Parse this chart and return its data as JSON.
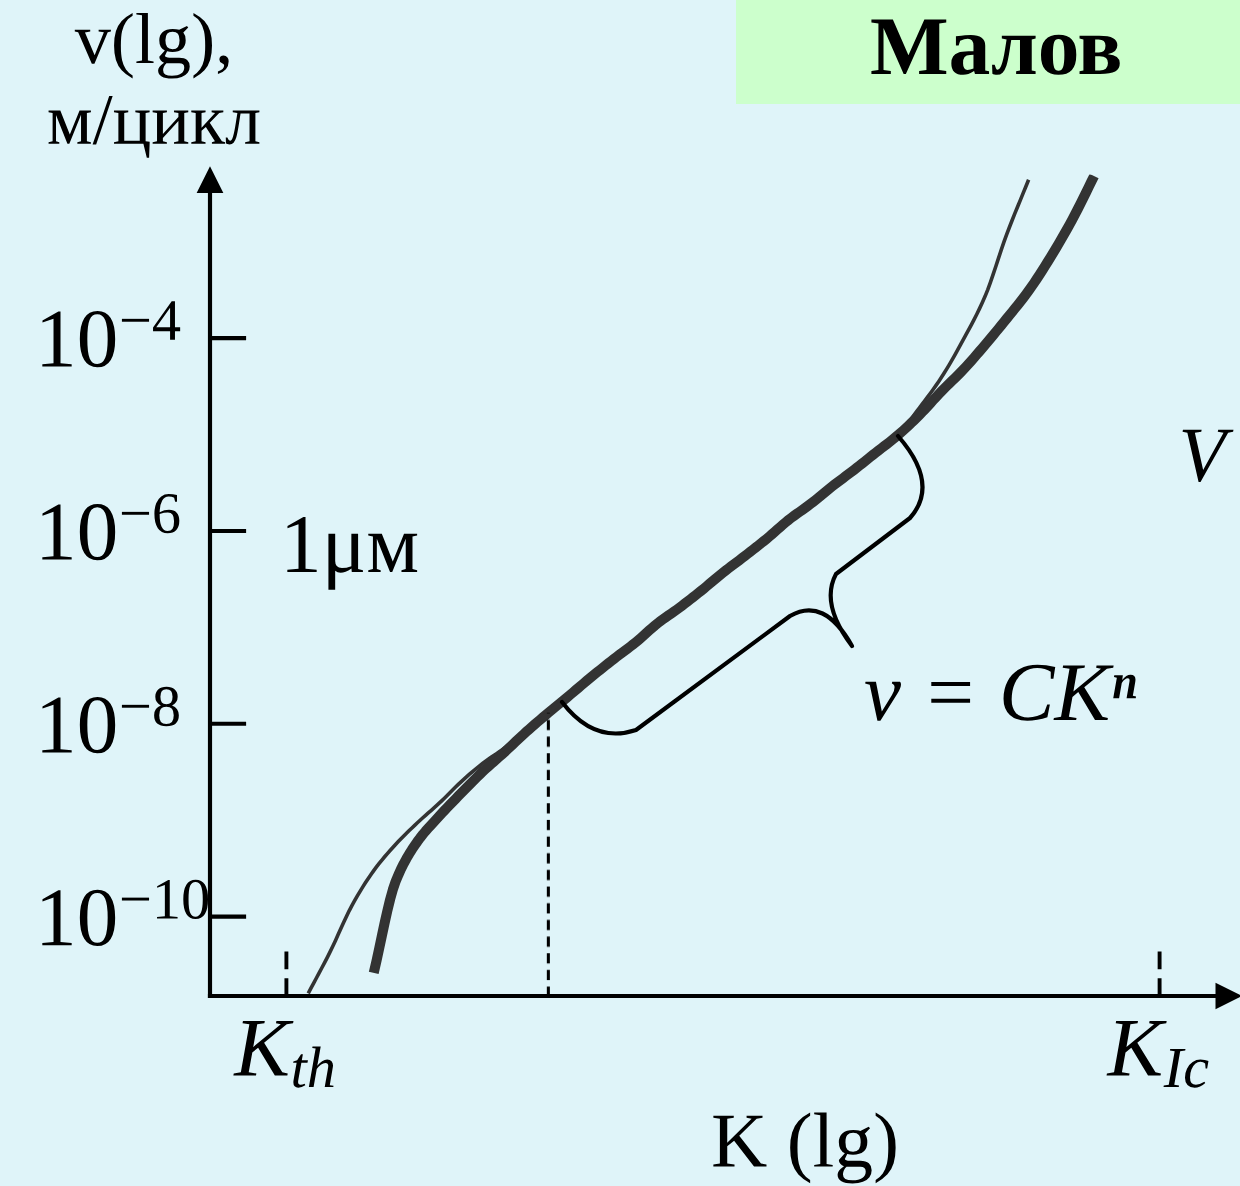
{
  "chart_data": {
    "type": "line",
    "title": "Малов",
    "xlabel": "K (lg)",
    "ylabel": "v(lg),\nм/цикл",
    "annotations": [
      "1μм",
      "v = CKⁿ",
      "V"
    ],
    "log": "y",
    "ylim": [
      1.5e-11,
      0.005
    ],
    "categories": [
      null,
      null,
      null,
      "K$_{th}$",
      null,
      null,
      null,
      null,
      null,
      null,
      null,
      null,
      null,
      null,
      null,
      null,
      null,
      null,
      null,
      null,
      null,
      null,
      null,
      null,
      null,
      null,
      null,
      null,
      null,
      null,
      null,
      null,
      null,
      null,
      null,
      null,
      null,
      null,
      null,
      null,
      null,
      null,
      null,
      "K$_{Ic}$",
      null,
      null,
      null
    ],
    "yticks": [
      {
        "value": 1e-10,
        "label": "10$^{−10}$"
      },
      {
        "value": 1e-08,
        "label": "10$^{−8}$"
      },
      {
        "value": 1e-06,
        "label": "10$^{−6}$"
      },
      {
        "value": 0.0001,
        "label": "10$^{−4}$"
      }
    ],
    "series": [
      {
        "color": "#333333",
        "values": [
          null,
          null,
          null,
          null,
          null,
          null,
          null,
          2.6e-11,
          2.3e-10,
          6e-10,
          1.1e-09,
          1.9e-09,
          3.2e-09,
          5.1e-09,
          8.3e-09,
          1.3e-08,
          2e-08,
          3.1e-08,
          4.7e-08,
          7e-08,
          1.1e-07,
          1.6e-07,
          2.4e-07,
          3.7e-07,
          5.5e-07,
          8.3e-07,
          1.3e-06,
          1.9e-06,
          2.9e-06,
          4.3e-06,
          6.5e-06,
          9.8e-06,
          1.6e-05,
          2.8e-05,
          4.7e-05,
          8.5e-05,
          0.00016,
          0.00031,
          0.00069,
          0.0017,
          0.0048,
          null,
          null,
          null,
          null,
          null,
          null
        ]
      },
      {
        "color": "#333333",
        "values": [
          null,
          null,
          null,
          null,
          1.6e-11,
          4.3e-11,
          1.3e-10,
          3e-10,
          5.6e-10,
          9.4e-10,
          1.5e-09,
          2.5e-09,
          3.9e-09,
          5.6e-09,
          8.3e-09,
          1.3e-08,
          2e-08,
          3.1e-08,
          4.7e-08,
          7e-08,
          1.1e-07,
          1.6e-07,
          2.4e-07,
          3.7e-07,
          5.5e-07,
          8.3e-07,
          1.3e-06,
          1.9e-06,
          2.9e-06,
          4.3e-06,
          6.5e-06,
          9.8e-06,
          1.9e-05,
          3.9e-05,
          9.6e-05,
          0.00027,
          0.0012,
          0.0044,
          null,
          null,
          null,
          null,
          null,
          null,
          null,
          null,
          null
        ]
      },
      {
        "type": "bar",
        "line_style": "dashed",
        "color": "#000000",
        "values": [
          null,
          null,
          null,
          null,
          null,
          null,
          null,
          null,
          null,
          null,
          null,
          null,
          null,
          null,
          null,
          1.3e-08,
          null,
          null,
          null,
          null,
          null,
          null,
          null,
          null,
          null,
          null,
          null,
          null,
          null,
          null,
          null,
          null,
          null,
          null,
          null,
          null,
          null,
          null,
          null,
          null,
          null,
          null,
          null,
          null,
          null,
          null,
          null
        ]
      }
    ]
  }
}
